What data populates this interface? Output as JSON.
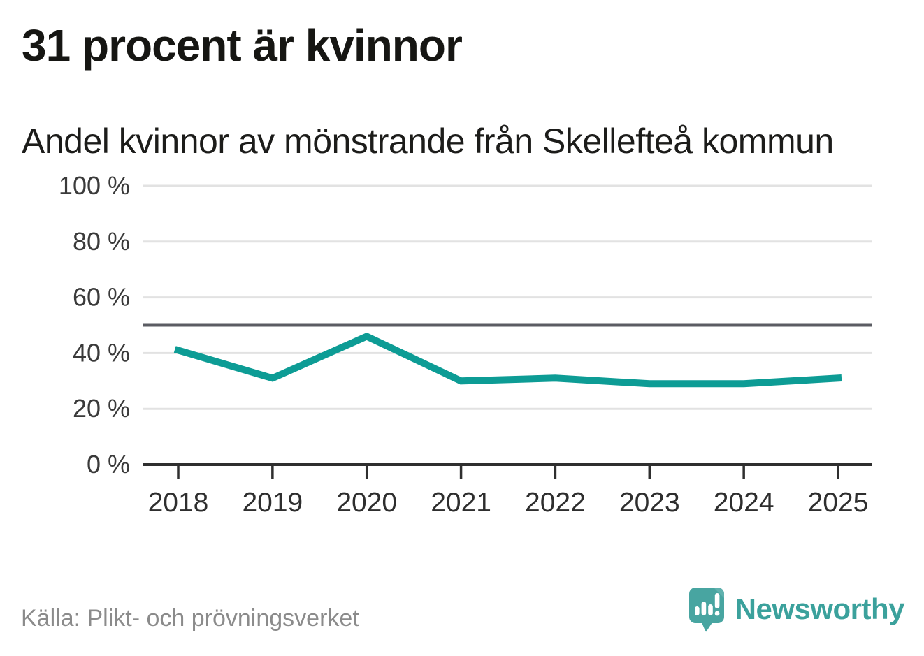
{
  "header": {
    "title": "31 procent är kvinnor",
    "subtitle": "Andel kvinnor av mönstrande från Skellefteå kommun"
  },
  "chart_data": {
    "type": "line",
    "title": "31 procent är kvinnor",
    "subtitle": "Andel kvinnor av mönstrande från Skellefteå kommun",
    "x_labels": [
      "2018",
      "2019",
      "2020",
      "2021",
      "2022",
      "2023",
      "2024",
      "2025"
    ],
    "series": [
      {
        "name": "Andel kvinnor av mönstrande (%)",
        "values": [
          41,
          31,
          46,
          30,
          31,
          29,
          29,
          31
        ]
      }
    ],
    "unit": "%",
    "ylim": [
      0,
      100
    ],
    "yticks": [
      0,
      20,
      40,
      60,
      80,
      100
    ],
    "ytick_labels": [
      "0 %",
      "20 %",
      "40 %",
      "60 %",
      "80 %",
      "100 %"
    ],
    "reference_line": {
      "value": 50
    },
    "grid": true,
    "legend": "none",
    "colors": {
      "line": "#0d9c95",
      "reference": "#5b5c63",
      "grid": "#e2e2e2",
      "axis": "#2f2f2f",
      "tick_label": "#3a3a3a"
    }
  },
  "footer": {
    "source": "Källa: Plikt- och prövningsverket",
    "brand": "Newsworthy",
    "brand_color": "#3ba19c",
    "brand_icon_color": "#48a5a1",
    "brand_icon_fold_color": "#63b3af",
    "brand_icon": "newsworthy-speech-bubble-chart-icon"
  }
}
